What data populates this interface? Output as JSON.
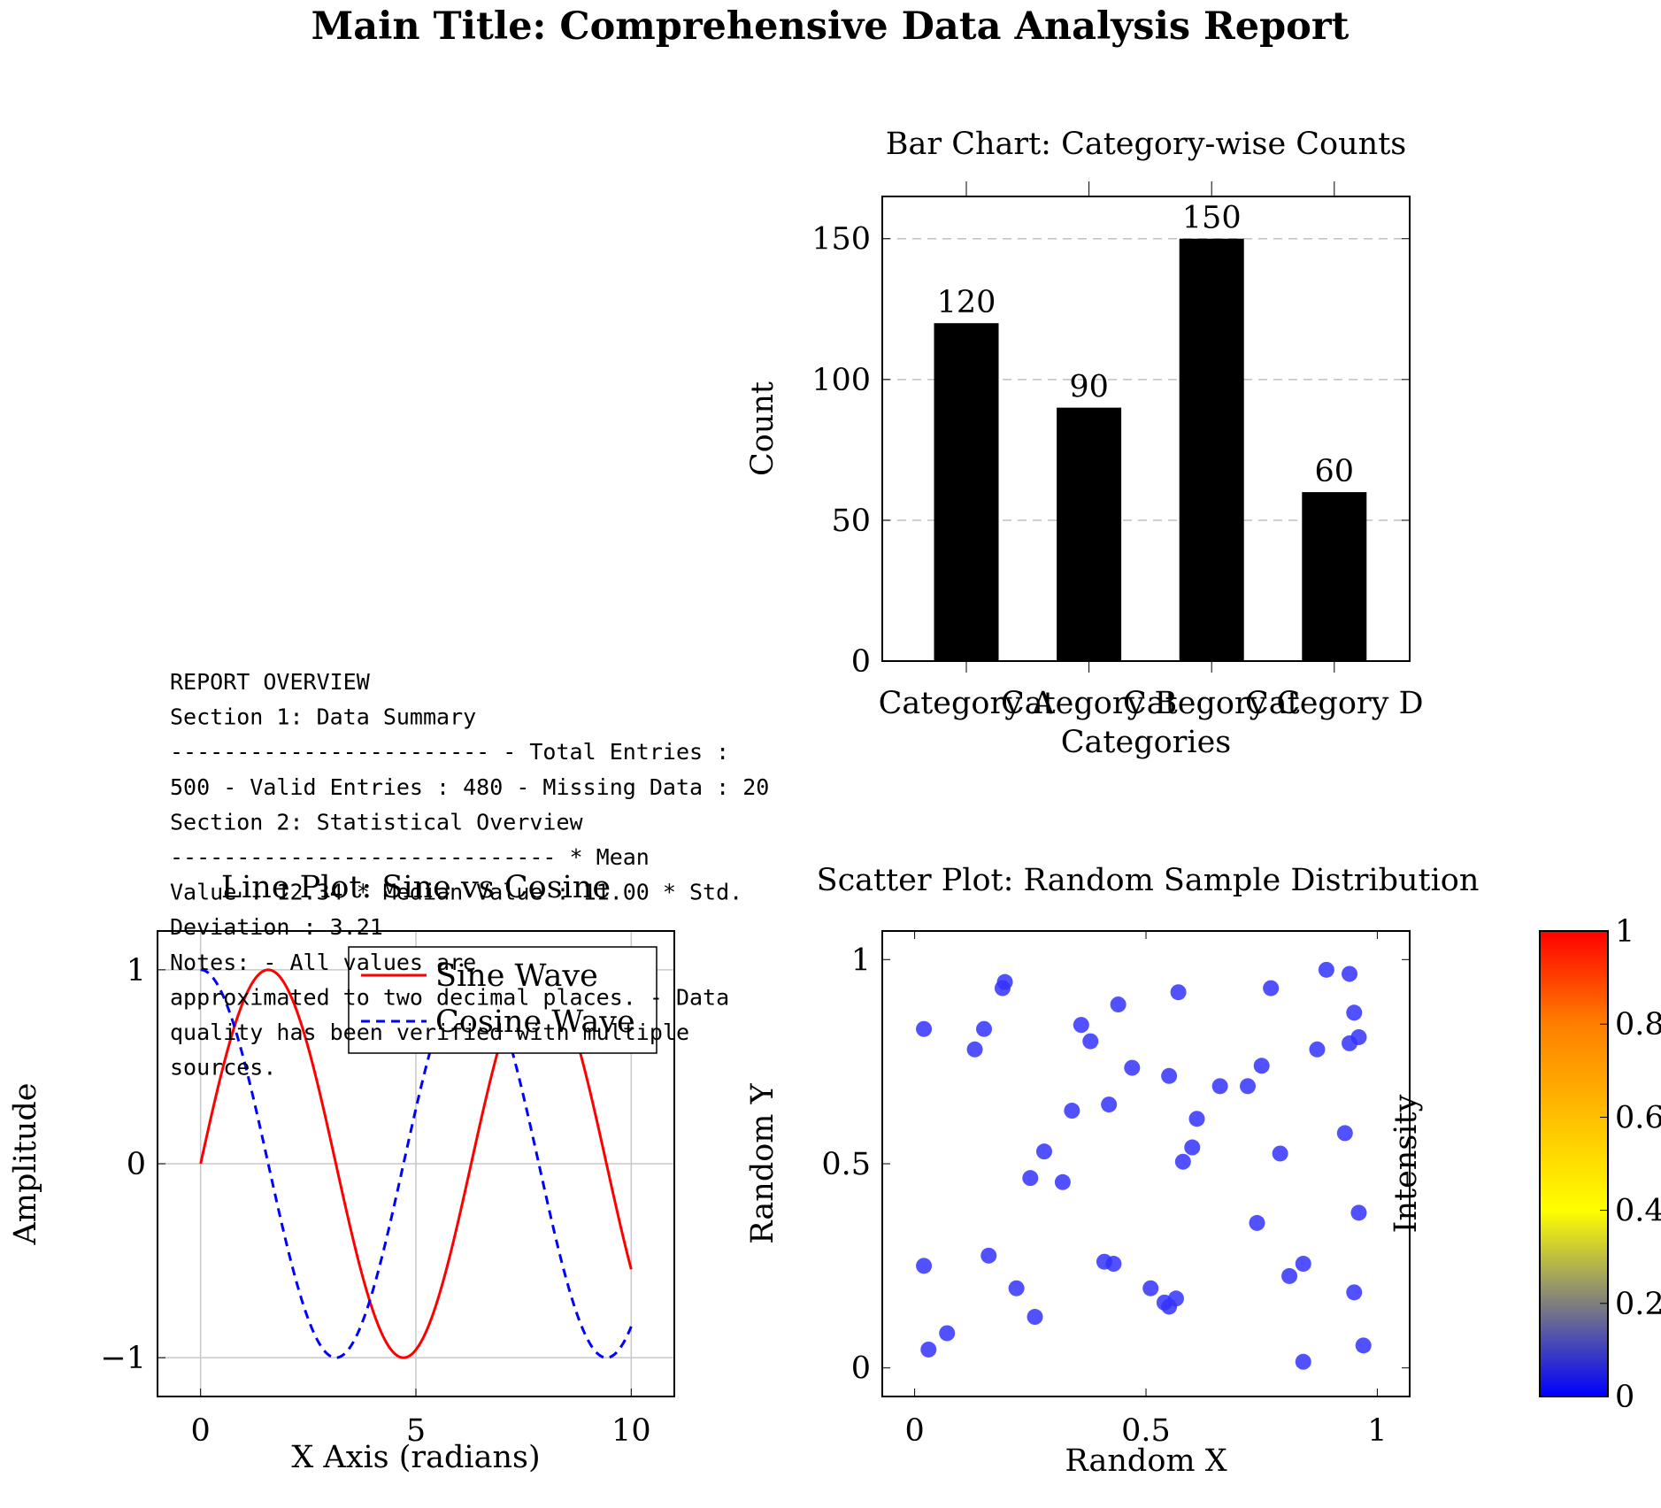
{
  "main_title": "Main Title: Comprehensive Data Analysis Report",
  "report_lines": [
    "REPORT OVERVIEW",
    "Section 1: Data Summary",
    "------------------------ - Total Entries :",
    "500 - Valid Entries : 480 - Missing Data : 20",
    "Section 2: Statistical Overview",
    "----------------------------- * Mean",
    "Value : 12.34 * Median Value : 11.00 * Std.",
    "Deviation : 3.21",
    "Notes: - All values are",
    "approximated to two decimal places. - Data",
    "quality has been verified with multiple",
    "sources."
  ],
  "chart_data": [
    {
      "type": "bar",
      "title": "Bar Chart: Category-wise Counts",
      "xlabel": "Categories",
      "ylabel": "Count",
      "categories": [
        "Category A",
        "Category B",
        "Category C",
        "Category D"
      ],
      "values": [
        120,
        90,
        150,
        60
      ],
      "ylim": [
        0,
        165
      ],
      "yticks": [
        0,
        50,
        100,
        150
      ],
      "grid": "y-dashed",
      "bar_color": "#000000"
    },
    {
      "type": "line",
      "title": "Line Plot: Sine vs Cosine",
      "xlabel": "X Axis (radians)",
      "ylabel": "Amplitude",
      "xlim": [
        -1,
        11
      ],
      "ylim": [
        -1.2,
        1.2
      ],
      "xticks": [
        0,
        5,
        10
      ],
      "yticks": [
        -1,
        0,
        1
      ],
      "grid": "on",
      "legend_position": "top-right",
      "x_range": [
        0,
        10
      ],
      "series": [
        {
          "name": "Sine Wave",
          "function": "sin",
          "color": "#ff0000",
          "style": "solid"
        },
        {
          "name": "Cosine Wave",
          "function": "cos",
          "color": "#0000ff",
          "style": "dashed"
        }
      ]
    },
    {
      "type": "scatter",
      "title": "Scatter Plot: Random Sample Distribution",
      "xlabel": "Random X",
      "ylabel": "Random Y",
      "xlim": [
        -0.07,
        1.07
      ],
      "ylim": [
        -0.07,
        1.07
      ],
      "xticks": [
        0,
        0.5,
        1
      ],
      "yticks": [
        0,
        0.5,
        1
      ],
      "marker_color": "#3333ff",
      "points": [
        [
          0.02,
          0.83
        ],
        [
          0.13,
          0.78
        ],
        [
          0.15,
          0.83
        ],
        [
          0.19,
          0.93
        ],
        [
          0.195,
          0.945
        ],
        [
          0.36,
          0.84
        ],
        [
          0.38,
          0.8
        ],
        [
          0.44,
          0.89
        ],
        [
          0.57,
          0.92
        ],
        [
          0.77,
          0.93
        ],
        [
          0.89,
          0.975
        ],
        [
          0.94,
          0.965
        ],
        [
          0.95,
          0.87
        ],
        [
          0.96,
          0.81
        ],
        [
          0.94,
          0.795
        ],
        [
          0.87,
          0.78
        ],
        [
          0.75,
          0.74
        ],
        [
          0.72,
          0.69
        ],
        [
          0.66,
          0.69
        ],
        [
          0.55,
          0.715
        ],
        [
          0.47,
          0.735
        ],
        [
          0.42,
          0.645
        ],
        [
          0.34,
          0.63
        ],
        [
          0.28,
          0.53
        ],
        [
          0.25,
          0.465
        ],
        [
          0.32,
          0.455
        ],
        [
          0.61,
          0.61
        ],
        [
          0.6,
          0.54
        ],
        [
          0.58,
          0.505
        ],
        [
          0.79,
          0.525
        ],
        [
          0.93,
          0.575
        ],
        [
          0.96,
          0.38
        ],
        [
          0.74,
          0.355
        ],
        [
          0.02,
          0.25
        ],
        [
          0.16,
          0.275
        ],
        [
          0.22,
          0.195
        ],
        [
          0.26,
          0.125
        ],
        [
          0.41,
          0.26
        ],
        [
          0.43,
          0.255
        ],
        [
          0.51,
          0.195
        ],
        [
          0.54,
          0.16
        ],
        [
          0.55,
          0.15
        ],
        [
          0.565,
          0.17
        ],
        [
          0.81,
          0.225
        ],
        [
          0.84,
          0.255
        ],
        [
          0.95,
          0.185
        ],
        [
          0.97,
          0.055
        ],
        [
          0.84,
          0.015
        ],
        [
          0.07,
          0.085
        ],
        [
          0.03,
          0.045
        ]
      ]
    },
    {
      "type": "colorbar",
      "label": "Intensity",
      "range": [
        0,
        1
      ],
      "ticks": [
        0,
        0.2,
        0.4,
        0.6,
        0.8,
        1
      ],
      "colors": [
        "#0000ff",
        "#7f7f7f",
        "#ffff00",
        "#ffbf00",
        "#ff7f00",
        "#ff0000"
      ]
    }
  ]
}
